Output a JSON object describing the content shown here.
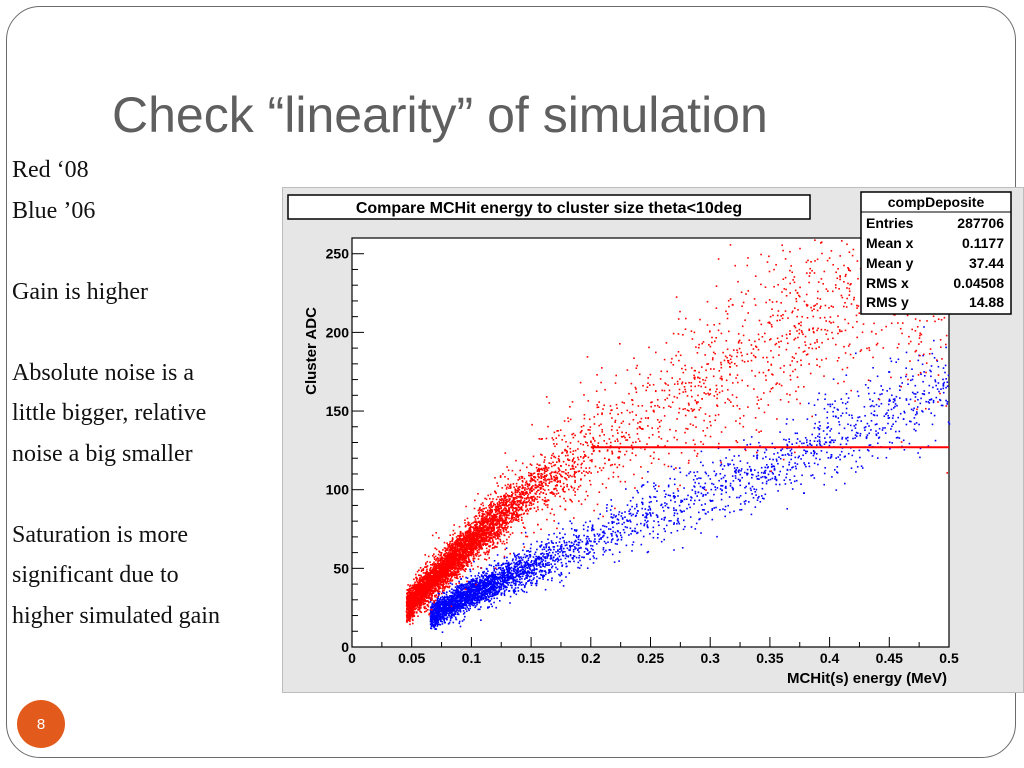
{
  "slide": {
    "title": "Check “linearity” of simulation",
    "page_number": "8",
    "bullets": [
      "Red ‘08",
      "Blue ’06",
      "",
      "Gain is higher",
      "",
      "Absolute noise is a",
      "little bigger, relative",
      "noise a big smaller",
      "",
      "Saturation is more",
      "significant due to",
      "higher simulated gain"
    ],
    "colors": {
      "title": "#5f5f5f",
      "badge": "#e35b1c"
    }
  },
  "chart_data": {
    "type": "scatter",
    "title": "Compare MCHit energy to cluster size theta<10deg",
    "xlabel": "MCHit(s) energy (MeV)",
    "ylabel": "Cluster ADC",
    "xlim": [
      0,
      0.5
    ],
    "ylim": [
      0,
      260
    ],
    "x_ticks": [
      "0",
      "0.05",
      "0.1",
      "0.15",
      "0.2",
      "0.25",
      "0.3",
      "0.35",
      "0.4",
      "0.45",
      "0.5"
    ],
    "y_ticks": [
      "0",
      "50",
      "100",
      "150",
      "200",
      "250"
    ],
    "grid": false,
    "series": [
      {
        "color": "#ff0000",
        "trend": [
          [
            0.05,
            30
          ],
          [
            0.1,
            68
          ],
          [
            0.15,
            100
          ],
          [
            0.2,
            125
          ],
          [
            0.25,
            148
          ],
          [
            0.3,
            170
          ],
          [
            0.35,
            195
          ],
          [
            0.4,
            220
          ],
          [
            0.45,
            238
          ],
          [
            0.5,
            250
          ]
        ],
        "saturation_line": {
          "x_start": 0.2,
          "x_end": 0.5,
          "y": 127
        }
      },
      {
        "color": "#0000ff",
        "trend": [
          [
            0.07,
            22
          ],
          [
            0.1,
            35
          ],
          [
            0.15,
            52
          ],
          [
            0.2,
            68
          ],
          [
            0.25,
            85
          ],
          [
            0.3,
            100
          ],
          [
            0.35,
            115
          ],
          [
            0.4,
            132
          ],
          [
            0.45,
            150
          ],
          [
            0.5,
            168
          ]
        ]
      }
    ],
    "stats_box": {
      "name": "compDeposite",
      "rows": [
        {
          "label": "Entries",
          "value": "287706"
        },
        {
          "label": "Mean x",
          "value": "0.1177"
        },
        {
          "label": "Mean y",
          "value": "37.44"
        },
        {
          "label": "RMS x",
          "value": "0.04508"
        },
        {
          "label": "RMS y",
          "value": "14.88"
        }
      ]
    }
  }
}
